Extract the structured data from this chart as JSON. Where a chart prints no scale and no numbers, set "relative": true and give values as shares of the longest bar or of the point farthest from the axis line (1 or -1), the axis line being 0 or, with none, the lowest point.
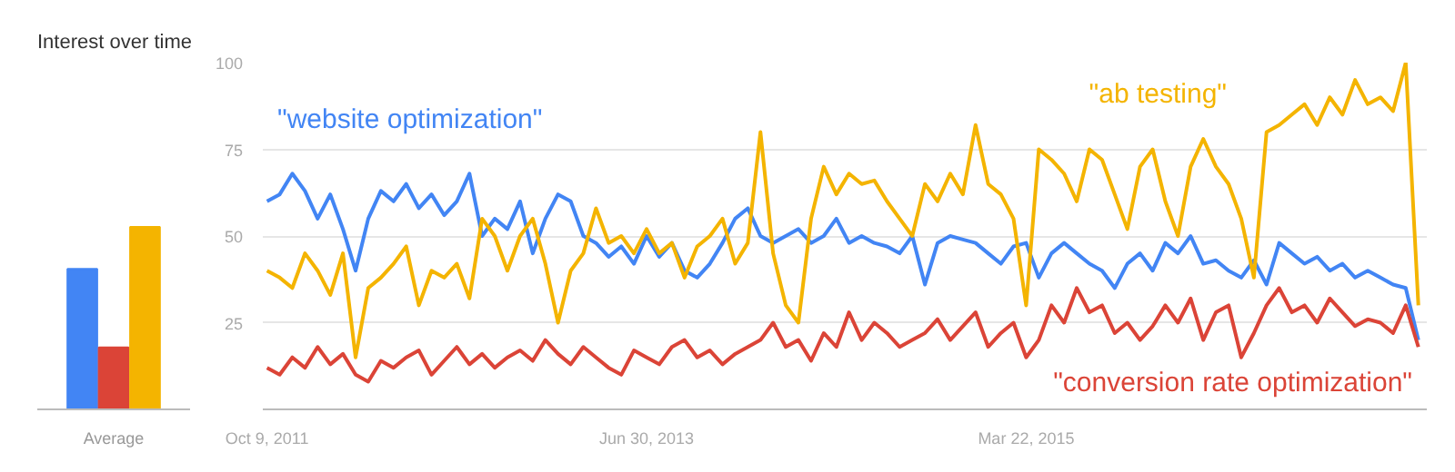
{
  "chart_data": [
    {
      "type": "bar",
      "title": "Interest over time",
      "categories": [
        "Average"
      ],
      "relative": true,
      "series": [
        {
          "color": "#4285f4",
          "values": [
            0.77
          ]
        },
        {
          "color": "#db4437",
          "values": [
            0.34
          ]
        },
        {
          "color": "#f4b400",
          "values": [
            1
          ]
        }
      ]
    },
    {
      "type": "line",
      "x": [
        "2011-10-09",
        "2011-10-30",
        "2011-11-20",
        "2011-12-11",
        "2012-01-01",
        "2012-01-22",
        "2012-02-12",
        "2012-03-04",
        "2012-03-25",
        "2012-04-15",
        "2012-05-06",
        "2012-05-27",
        "2012-06-17",
        "2012-07-08",
        "2012-07-29",
        "2012-08-19",
        "2012-09-09",
        "2012-09-30",
        "2012-10-21",
        "2012-11-11",
        "2012-12-02",
        "2012-12-23",
        "2013-01-13",
        "2013-02-03",
        "2013-02-24",
        "2013-03-17",
        "2013-04-07",
        "2013-04-28",
        "2013-05-19",
        "2013-06-09",
        "2013-06-30",
        "2013-07-21",
        "2013-08-11",
        "2013-09-01",
        "2013-09-22",
        "2013-10-13",
        "2013-11-03",
        "2013-11-24",
        "2013-12-15",
        "2014-01-05",
        "2014-01-26",
        "2014-02-16",
        "2014-03-09",
        "2014-03-30",
        "2014-04-20",
        "2014-05-11",
        "2014-06-01",
        "2014-06-22",
        "2014-07-13",
        "2014-08-03",
        "2014-08-24",
        "2014-09-14",
        "2014-10-05",
        "2014-10-26",
        "2014-11-16",
        "2014-12-07",
        "2014-12-28",
        "2015-01-18",
        "2015-02-08",
        "2015-03-01",
        "2015-03-22",
        "2015-04-12",
        "2015-05-03",
        "2015-05-24",
        "2015-06-14",
        "2015-07-05",
        "2015-07-26",
        "2015-08-16",
        "2015-09-06",
        "2015-09-27",
        "2015-10-18",
        "2015-11-08",
        "2015-11-29",
        "2015-12-20",
        "2016-01-10",
        "2016-01-31",
        "2016-02-21",
        "2016-03-13",
        "2016-04-03",
        "2016-04-24",
        "2016-05-15",
        "2016-06-05",
        "2016-06-26",
        "2016-07-17",
        "2016-08-07",
        "2016-08-28",
        "2016-09-18",
        "2016-10-09",
        "2016-10-30",
        "2016-11-20",
        "2016-12-11",
        "2017-01-01"
      ],
      "xlim": [
        "2011-10-02",
        "2017-01-15"
      ],
      "ylim": [
        0,
        100
      ],
      "xticks": [
        {
          "value": "2011-10-09",
          "label": "Oct 9, 2011"
        },
        {
          "value": "2013-06-30",
          "label": "Jun 30, 2013"
        },
        {
          "value": "2015-03-22",
          "label": "Mar 22, 2015"
        }
      ],
      "yticks": [
        {
          "value": 0,
          "label": null
        },
        25,
        50,
        75,
        100
      ],
      "grid": "y",
      "marker": "none",
      "line_style": "solid",
      "series": [
        {
          "name": "\"website optimization\"",
          "color": "#4285f4",
          "values": [
            60,
            62,
            68,
            63,
            55,
            62,
            52,
            40,
            55,
            63,
            60,
            65,
            58,
            62,
            56,
            60,
            68,
            50,
            55,
            52,
            60,
            45,
            55,
            62,
            60,
            50,
            48,
            44,
            47,
            42,
            50,
            44,
            48,
            40,
            38,
            42,
            48,
            55,
            58,
            50,
            48,
            50,
            52,
            48,
            50,
            55,
            48,
            50,
            48,
            47,
            45,
            50,
            36,
            48,
            50,
            49,
            48,
            45,
            42,
            47,
            48,
            38,
            45,
            48,
            45,
            42,
            40,
            35,
            42,
            45,
            40,
            48,
            45,
            50,
            42,
            43,
            40,
            38,
            43,
            36,
            48,
            45,
            42,
            44,
            40,
            42,
            38,
            40,
            38,
            36,
            35,
            20
          ]
        },
        {
          "name": "\"conversion rate optimization\"",
          "color": "#db4437",
          "values": [
            12,
            10,
            15,
            12,
            18,
            13,
            16,
            10,
            8,
            14,
            12,
            15,
            17,
            10,
            14,
            18,
            13,
            16,
            12,
            15,
            17,
            14,
            20,
            16,
            13,
            18,
            15,
            12,
            10,
            17,
            15,
            13,
            18,
            20,
            15,
            17,
            13,
            16,
            18,
            20,
            25,
            18,
            20,
            14,
            22,
            18,
            28,
            20,
            25,
            22,
            18,
            20,
            22,
            26,
            20,
            24,
            28,
            18,
            22,
            25,
            15,
            20,
            30,
            25,
            35,
            28,
            30,
            22,
            25,
            20,
            24,
            30,
            25,
            32,
            20,
            28,
            30,
            15,
            22,
            30,
            35,
            28,
            30,
            25,
            32,
            28,
            24,
            26,
            25,
            22,
            30,
            18
          ]
        },
        {
          "name": "\"ab testing\"",
          "color": "#f4b400",
          "values": [
            40,
            38,
            35,
            45,
            40,
            33,
            45,
            15,
            35,
            38,
            42,
            47,
            30,
            40,
            38,
            42,
            32,
            55,
            50,
            40,
            50,
            55,
            42,
            25,
            40,
            45,
            58,
            48,
            50,
            45,
            52,
            45,
            48,
            38,
            47,
            50,
            55,
            42,
            48,
            80,
            45,
            30,
            25,
            55,
            70,
            62,
            68,
            65,
            66,
            60,
            55,
            50,
            65,
            60,
            68,
            62,
            82,
            65,
            62,
            55,
            30,
            75,
            72,
            68,
            60,
            75,
            72,
            62,
            52,
            70,
            75,
            60,
            50,
            70,
            78,
            70,
            65,
            55,
            38,
            80,
            82,
            85,
            88,
            82,
            90,
            85,
            95,
            88,
            90,
            86,
            100,
            30
          ]
        }
      ]
    }
  ]
}
